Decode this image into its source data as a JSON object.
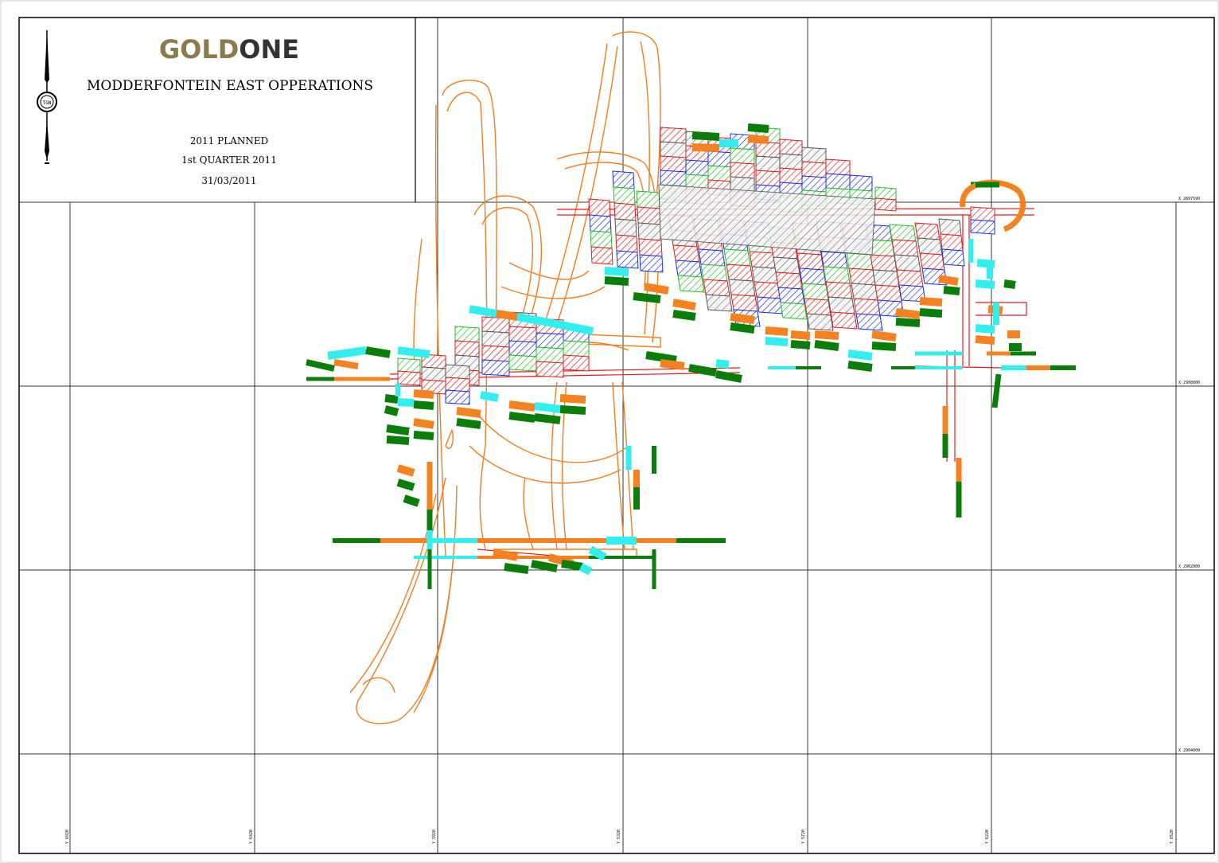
{
  "title_block": {
    "logo_part1": "GOLD",
    "logo_part2": "ONE",
    "operation_name": "MODDERFONTEIN EAST OPPERATIONS",
    "plan_status": "2011 PLANNED",
    "plan_period": "1st QUARTER 2011",
    "plan_date": "31/03/2011",
    "north_seal_text": "TGN"
  },
  "grid": {
    "x_labels": [
      "X 2897590",
      "X 2900000",
      "X 2902000",
      "X 2904000"
    ],
    "y_labels": [
      "Y 6920",
      "Y 6420",
      "Y 5920",
      "Y 5320",
      "Y 5720",
      "Y 6220",
      "Y 6520"
    ]
  },
  "colors": {
    "frame": "#000000",
    "grid": "#333333",
    "outline": "#f07d1e",
    "orange_fill": "#f58220",
    "green_fill": "#0a7d0a",
    "cyan_fill": "#33eeee",
    "hatch_red": "#e41a1a",
    "hatch_blue": "#1a2ee4",
    "hatch_green": "#22c022",
    "hatch_grey": "#555555",
    "logo_gold": "#8c7a4a",
    "logo_dark": "#333333"
  }
}
